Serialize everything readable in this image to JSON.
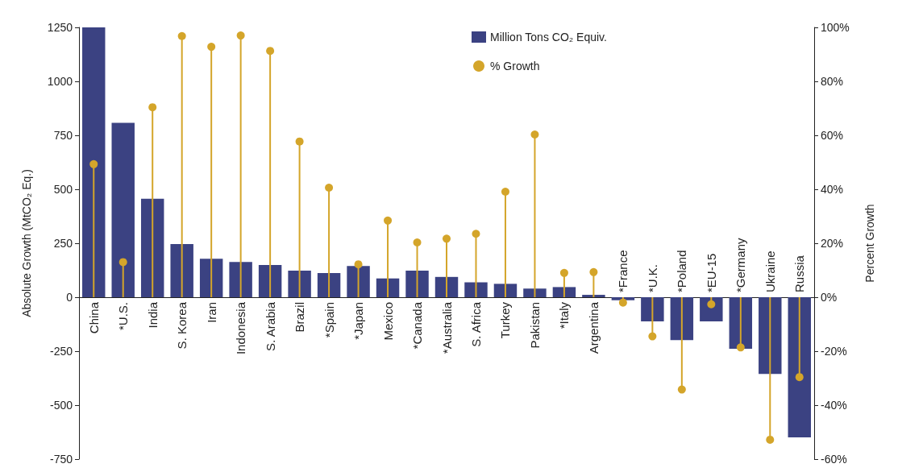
{
  "chart_data": {
    "type": "bar",
    "ylabel": "Absolute Growth (MtCO₂ Eq.)",
    "y2label": "Percent Growth",
    "categories": [
      "China",
      "*U.S.",
      "India",
      "S. Korea",
      "Iran",
      "Indonesia",
      "S. Arabia",
      "Brazil",
      "*Spain",
      "*Japan",
      "Mexico",
      "*Canada",
      "*Australia",
      "S. Africa",
      "Turkey",
      "Pakistan",
      "*Italy",
      "Argentina",
      "*France",
      "*U.K.",
      "*Poland",
      "*EU-15",
      "*Germany",
      "Ukraine",
      "Russia"
    ],
    "series": [
      {
        "name": "Million Tons CO₂ Equiv.",
        "color": "#3b4282",
        "values": [
          1250,
          808,
          456,
          246,
          178,
          163,
          149,
          123,
          112,
          145,
          87,
          123,
          94,
          69,
          62,
          40,
          47,
          11,
          -14,
          -112,
          -199,
          -112,
          -239,
          -355,
          -649
        ]
      },
      {
        "name": "% Growth",
        "type": "lollipop",
        "axis": "y2",
        "color": "#d4a52a",
        "values": [
          49.3,
          13,
          70.4,
          96.8,
          92.8,
          97,
          91.3,
          57.7,
          40.6,
          12.2,
          28.4,
          20.3,
          21.7,
          23.5,
          39.1,
          60.3,
          9,
          9.3,
          -2,
          -14.5,
          -34.2,
          -2.6,
          -18.6,
          -52.8,
          -29.6
        ]
      }
    ],
    "ylim": [
      -750,
      1250
    ],
    "yticks": [
      -750,
      -500,
      -250,
      0,
      250,
      500,
      750,
      1000,
      1250
    ],
    "y2lim": [
      -60,
      100
    ],
    "y2ticks": [
      {
        "value": -60,
        "label": "-60%"
      },
      {
        "value": -40,
        "label": "-40%"
      },
      {
        "value": -20,
        "label": "-20%"
      },
      {
        "value": 0,
        "label": "0%"
      },
      {
        "value": 20,
        "label": "20%"
      },
      {
        "value": 40,
        "label": "40%"
      },
      {
        "value": 60,
        "label": "60%"
      },
      {
        "value": 80,
        "label": "80%"
      },
      {
        "value": 100,
        "label": "100%"
      }
    ],
    "legend": "top right",
    "grid": false,
    "marker": "circle"
  }
}
